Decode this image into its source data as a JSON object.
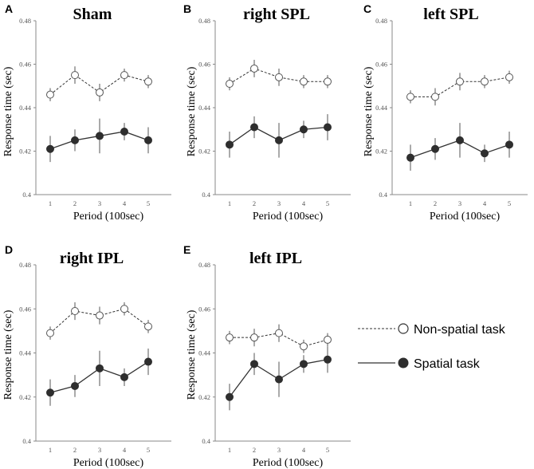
{
  "chart_data": [
    {
      "panel": "A",
      "title": "Sham",
      "type": "line",
      "x": [
        1,
        2,
        3,
        4,
        5
      ],
      "ylim": [
        0.4,
        0.48
      ],
      "yticks": [
        0.4,
        0.42,
        0.44,
        0.46,
        0.48
      ],
      "ytick_labels": [
        "0.4",
        "0.42",
        "0.44",
        "0.46",
        "0.48"
      ],
      "xlabel": "Period (100sec)",
      "ylabel": "Response time (sec)",
      "series": [
        {
          "name": "Non-spatial task",
          "values": [
            0.446,
            0.455,
            0.447,
            0.455,
            0.452
          ],
          "err": [
            0.003,
            0.004,
            0.004,
            0.003,
            0.003
          ]
        },
        {
          "name": "Spatial task",
          "values": [
            0.421,
            0.425,
            0.427,
            0.429,
            0.425
          ],
          "err": [
            0.006,
            0.005,
            0.008,
            0.004,
            0.006
          ]
        }
      ]
    },
    {
      "panel": "B",
      "title": "right SPL",
      "type": "line",
      "x": [
        1,
        2,
        3,
        4,
        5
      ],
      "ylim": [
        0.4,
        0.48
      ],
      "yticks": [
        0.4,
        0.42,
        0.44,
        0.46,
        0.48
      ],
      "ytick_labels": [
        "0.4",
        "0.42",
        "0.44",
        "0.46",
        "0.48"
      ],
      "xlabel": "Period (100sec)",
      "ylabel": "Response time (sec)",
      "series": [
        {
          "name": "Non-spatial task",
          "values": [
            0.451,
            0.458,
            0.454,
            0.452,
            0.452
          ],
          "err": [
            0.003,
            0.004,
            0.004,
            0.003,
            0.003
          ]
        },
        {
          "name": "Spatial task",
          "values": [
            0.423,
            0.431,
            0.425,
            0.43,
            0.431
          ],
          "err": [
            0.006,
            0.005,
            0.008,
            0.004,
            0.006
          ]
        }
      ]
    },
    {
      "panel": "C",
      "title": "left SPL",
      "type": "line",
      "x": [
        1,
        2,
        3,
        4,
        5
      ],
      "ylim": [
        0.4,
        0.48
      ],
      "yticks": [
        0.4,
        0.42,
        0.44,
        0.46,
        0.48
      ],
      "ytick_labels": [
        "0.4",
        "0.42",
        "0.44",
        "0.46",
        "0.48"
      ],
      "xlabel": "Period (100sec)",
      "ylabel": "Response time (sec)",
      "series": [
        {
          "name": "Non-spatial task",
          "values": [
            0.445,
            0.445,
            0.452,
            0.452,
            0.454
          ],
          "err": [
            0.003,
            0.004,
            0.004,
            0.003,
            0.003
          ]
        },
        {
          "name": "Spatial task",
          "values": [
            0.417,
            0.421,
            0.425,
            0.419,
            0.423
          ],
          "err": [
            0.006,
            0.005,
            0.008,
            0.004,
            0.006
          ]
        }
      ]
    },
    {
      "panel": "D",
      "title": "right IPL",
      "type": "line",
      "x": [
        1,
        2,
        3,
        4,
        5
      ],
      "ylim": [
        0.4,
        0.48
      ],
      "yticks": [
        0.4,
        0.42,
        0.44,
        0.46,
        0.48
      ],
      "ytick_labels": [
        "0.4",
        "0.42",
        "0.44",
        "0.46",
        "0.48"
      ],
      "xlabel": "Period (100sec)",
      "ylabel": "Response time (sec)",
      "series": [
        {
          "name": "Non-spatial task",
          "values": [
            0.449,
            0.459,
            0.457,
            0.46,
            0.452
          ],
          "err": [
            0.003,
            0.004,
            0.004,
            0.003,
            0.003
          ]
        },
        {
          "name": "Spatial task",
          "values": [
            0.422,
            0.425,
            0.433,
            0.429,
            0.436
          ],
          "err": [
            0.006,
            0.005,
            0.008,
            0.004,
            0.006
          ]
        }
      ]
    },
    {
      "panel": "E",
      "title": "left IPL",
      "type": "line",
      "x": [
        1,
        2,
        3,
        4,
        5
      ],
      "ylim": [
        0.4,
        0.48
      ],
      "yticks": [
        0.4,
        0.42,
        0.44,
        0.46,
        0.48
      ],
      "ytick_labels": [
        "0.4",
        "0.42",
        "0.44",
        "0.46",
        "0.48"
      ],
      "xlabel": "Period (100sec)",
      "ylabel": "Response time (sec)",
      "series": [
        {
          "name": "Non-spatial task",
          "values": [
            0.447,
            0.447,
            0.449,
            0.443,
            0.446
          ],
          "err": [
            0.003,
            0.004,
            0.004,
            0.003,
            0.003
          ]
        },
        {
          "name": "Spatial task",
          "values": [
            0.42,
            0.435,
            0.428,
            0.435,
            0.437
          ],
          "err": [
            0.006,
            0.005,
            0.008,
            0.004,
            0.006
          ]
        }
      ]
    }
  ],
  "legend": {
    "items": [
      {
        "label": "Non-spatial task",
        "style": "dashed",
        "marker": "open-circle"
      },
      {
        "label": "Spatial task",
        "style": "solid",
        "marker": "filled-circle"
      }
    ]
  },
  "colors": {
    "line": "#333333",
    "marker_fill": "#2e2e2e",
    "open_fill": "#ffffff",
    "axis": "#888888"
  }
}
